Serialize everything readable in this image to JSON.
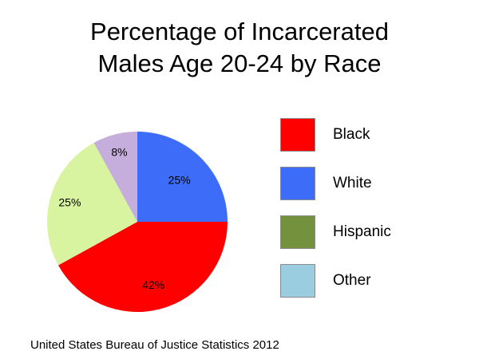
{
  "title_lines": [
    "Percentage of Incarcerated",
    "Males Age 20-24 by Race"
  ],
  "source": "United States Bureau of Justice Statistics 2012",
  "legend": [
    {
      "label": "Black",
      "color": "#ff0000"
    },
    {
      "label": "White",
      "color": "#3c6cf8"
    },
    {
      "label": "Hispanic",
      "color": "#74923d"
    },
    {
      "label": "Other",
      "color": "#99cddf"
    }
  ],
  "chart_data": {
    "type": "pie",
    "title": "Percentage of Incarcerated Males Age 20-24 by Race",
    "legend_position": "right",
    "slices": [
      {
        "value": 25,
        "data_label": "25%",
        "color": "#3c6cf8"
      },
      {
        "value": 42,
        "data_label": "42%",
        "color": "#ff0000"
      },
      {
        "value": 25,
        "data_label": "25%",
        "color": "#d8f4a0"
      },
      {
        "value": 8,
        "data_label": "8%",
        "color": "#c5aedb"
      }
    ]
  }
}
